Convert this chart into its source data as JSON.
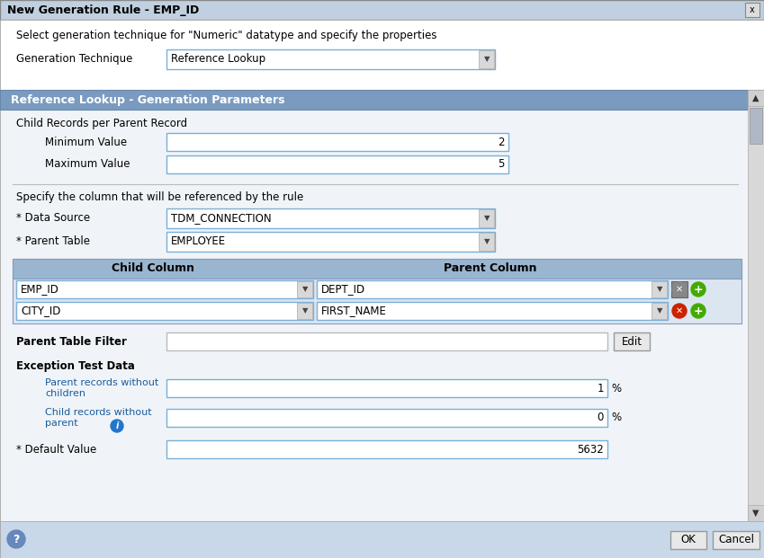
{
  "title": "New Generation Rule - EMP_ID",
  "subtitle": "Select generation technique for \"Numeric\" datatype and specify the properties",
  "gen_technique_label": "Generation Technique",
  "gen_technique_value": "Reference Lookup",
  "section_title": "Reference Lookup - Generation Parameters",
  "child_records_label": "Child Records per Parent Record",
  "min_value_label": "Minimum Value",
  "min_value": "2",
  "max_value_label": "Maximum Value",
  "max_value": "5",
  "specify_label": "Specify the column that will be referenced by the rule",
  "data_source_label": "* Data Source",
  "data_source_value": "TDM_CONNECTION",
  "parent_table_label": "* Parent Table",
  "parent_table_value": "EMPLOYEE",
  "col_header_child": "Child Column",
  "col_header_parent": "Parent Column",
  "row1_child": "EMP_ID",
  "row1_parent": "DEPT_ID",
  "row2_child": "CITY_ID",
  "row2_parent": "FIRST_NAME",
  "filter_label": "Parent Table Filter",
  "edit_button": "Edit",
  "exception_label": "Exception Test Data",
  "parent_wo_children_label": "Parent records without\nchildren",
  "parent_wo_children_value": "1",
  "child_wo_parent_label": "Child records without\nparent",
  "child_wo_parent_value": "0",
  "default_value_label": "* Default Value",
  "default_value": "5632",
  "ok_button": "OK",
  "cancel_button": "Cancel",
  "bg_outer": "#c8d8e8",
  "bg_white": "#ffffff",
  "bg_panel": "#f0f4f8",
  "header_bg": "#7a9bbf",
  "table_header_bg": "#9ab5cf",
  "input_bg": "#ffffff",
  "input_border_blue": "#7ab0d8",
  "input_border_gray": "#bbbbbb",
  "bottom_bar_bg": "#c8d8e8",
  "btn_bg": "#e8e8e8",
  "btn_border": "#999999",
  "text_black": "#000000",
  "text_blue_label": "#1a5c9e",
  "scrollbar_bg": "#d8d8d8",
  "title_bar_bg": "#c0d0e0"
}
